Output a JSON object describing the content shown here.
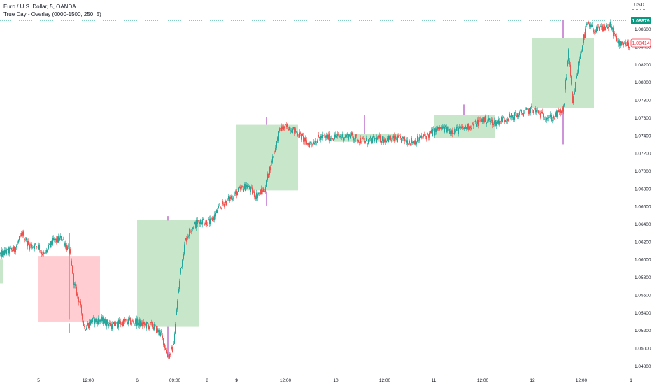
{
  "header": {
    "symbol_title": "Euro / U.S. Dollar, 5, OANDA",
    "indicator_title": "True Day - Overlay (0000-1500, 250, 5)",
    "currency": "USD"
  },
  "colors": {
    "up_candle": "#26a69a",
    "down_candle": "#ef5350",
    "up_box": "#c8e6c9",
    "down_box": "#ffcdd2",
    "wick_marker": "#ce93d8",
    "last_price_bg": "#089981",
    "prev_close_border": "#f23645"
  },
  "chart_data": {
    "type": "candlestick",
    "symbol": "Euro / U.S. Dollar",
    "timeframe": "5",
    "exchange": "OANDA",
    "ylim": [
      1.047,
      1.0885
    ],
    "y_ticks": [
      1.048,
      1.05,
      1.052,
      1.054,
      1.056,
      1.058,
      1.06,
      1.062,
      1.064,
      1.066,
      1.068,
      1.07,
      1.072,
      1.074,
      1.076,
      1.078,
      1.08,
      1.082,
      1.084,
      1.086
    ],
    "y_tick_labels": [
      "1.04800",
      "1.05000",
      "1.05200",
      "1.05400",
      "1.05600",
      "1.05800",
      "1.06000",
      "1.06200",
      "1.06400",
      "1.06600",
      "1.06800",
      "1.07000",
      "1.07200",
      "1.07400",
      "1.07600",
      "1.07800",
      "1.08000",
      "1.08200",
      "1.08400",
      "1.08600"
    ],
    "x_ticks": [
      {
        "label": "5",
        "bold": false,
        "bar": 55
      },
      {
        "label": "12:00",
        "bold": false,
        "bar": 126
      },
      {
        "label": "6",
        "bold": false,
        "bar": 196
      },
      {
        "label": "09:00",
        "bold": false,
        "bar": 250
      },
      {
        "label": "8",
        "bold": false,
        "bar": 296
      },
      {
        "label": "9",
        "bold": true,
        "bar": 338
      },
      {
        "label": "12:00",
        "bold": false,
        "bar": 408
      },
      {
        "label": "10",
        "bold": false,
        "bar": 480
      },
      {
        "label": "12:00",
        "bold": false,
        "bar": 550
      },
      {
        "label": "11",
        "bold": false,
        "bar": 620
      },
      {
        "label": "12:00",
        "bold": false,
        "bar": 690
      },
      {
        "label": "12",
        "bold": false,
        "bar": 761
      },
      {
        "label": "12:00",
        "bold": false,
        "bar": 831
      },
      {
        "label": "1",
        "bold": false,
        "bar": 902
      }
    ],
    "last_price": "1.08679",
    "prev_close_label": "1.08414",
    "overlay_boxes": [
      {
        "from_bar": 0,
        "to_bar": 4,
        "top": 1.06,
        "bottom": 1.0573,
        "direction": "up"
      },
      {
        "from_bar": 55,
        "to_bar": 143,
        "top": 1.0604,
        "bottom": 1.053,
        "direction": "down"
      },
      {
        "from_bar": 196,
        "to_bar": 284,
        "top": 1.0645,
        "bottom": 1.0524,
        "direction": "up"
      },
      {
        "from_bar": 338,
        "to_bar": 426,
        "top": 1.0752,
        "bottom": 1.0678,
        "direction": "up"
      },
      {
        "from_bar": 478,
        "to_bar": 568,
        "top": 1.0742,
        "bottom": 1.0733,
        "direction": "up"
      },
      {
        "from_bar": 620,
        "to_bar": 708,
        "top": 1.0763,
        "bottom": 1.0737,
        "direction": "up"
      },
      {
        "from_bar": 761,
        "to_bar": 849,
        "top": 1.085,
        "bottom": 1.0771,
        "direction": "up"
      }
    ],
    "wick_markers": [
      {
        "bar": 99,
        "high": 1.063,
        "low": 1.0532
      },
      {
        "bar": 99,
        "high": 1.0528,
        "low": 1.0517
      },
      {
        "bar": 240,
        "high": 1.0649,
        "low": 1.0644
      },
      {
        "bar": 240,
        "high": 1.0524,
        "low": 1.049
      },
      {
        "bar": 381,
        "high": 1.0761,
        "low": 1.0752
      },
      {
        "bar": 381,
        "high": 1.0677,
        "low": 1.0661
      },
      {
        "bar": 521,
        "high": 1.0763,
        "low": 1.0742
      },
      {
        "bar": 663,
        "high": 1.0775,
        "low": 1.0763
      },
      {
        "bar": 805,
        "high": 1.087,
        "low": 1.085
      },
      {
        "bar": 805,
        "high": 1.077,
        "low": 1.073
      }
    ],
    "price_path": [
      [
        0,
        1.0606
      ],
      [
        20,
        1.0611
      ],
      [
        32,
        1.063
      ],
      [
        40,
        1.0616
      ],
      [
        55,
        1.0615
      ],
      [
        62,
        1.0604
      ],
      [
        75,
        1.062
      ],
      [
        88,
        1.0624
      ],
      [
        99,
        1.0608
      ],
      [
        106,
        1.057
      ],
      [
        113,
        1.0553
      ],
      [
        120,
        1.0523
      ],
      [
        130,
        1.053
      ],
      [
        143,
        1.0532
      ],
      [
        160,
        1.0525
      ],
      [
        178,
        1.053
      ],
      [
        196,
        1.0529
      ],
      [
        205,
        1.0526
      ],
      [
        218,
        1.0525
      ],
      [
        230,
        1.0515
      ],
      [
        240,
        1.049
      ],
      [
        247,
        1.05
      ],
      [
        253,
        1.0553
      ],
      [
        258,
        1.059
      ],
      [
        264,
        1.062
      ],
      [
        272,
        1.0635
      ],
      [
        285,
        1.0644
      ],
      [
        300,
        1.0642
      ],
      [
        315,
        1.066
      ],
      [
        338,
        1.0676
      ],
      [
        352,
        1.0683
      ],
      [
        365,
        1.0672
      ],
      [
        378,
        1.068
      ],
      [
        390,
        1.0718
      ],
      [
        400,
        1.0747
      ],
      [
        412,
        1.075
      ],
      [
        426,
        1.0742
      ],
      [
        440,
        1.073
      ],
      [
        458,
        1.0738
      ],
      [
        478,
        1.0738
      ],
      [
        500,
        1.074
      ],
      [
        520,
        1.0733
      ],
      [
        540,
        1.0736
      ],
      [
        568,
        1.0736
      ],
      [
        590,
        1.0733
      ],
      [
        610,
        1.074
      ],
      [
        628,
        1.0748
      ],
      [
        648,
        1.0745
      ],
      [
        670,
        1.075
      ],
      [
        690,
        1.0758
      ],
      [
        708,
        1.0755
      ],
      [
        725,
        1.076
      ],
      [
        745,
        1.0765
      ],
      [
        761,
        1.077
      ],
      [
        775,
        1.0762
      ],
      [
        790,
        1.076
      ],
      [
        805,
        1.077
      ],
      [
        812,
        1.0836
      ],
      [
        818,
        1.0775
      ],
      [
        826,
        1.082
      ],
      [
        838,
        1.0865
      ],
      [
        852,
        1.0858
      ],
      [
        863,
        1.0862
      ],
      [
        872,
        1.0864
      ],
      [
        882,
        1.0845
      ],
      [
        892,
        1.0845
      ],
      [
        899,
        1.0842
      ]
    ]
  }
}
